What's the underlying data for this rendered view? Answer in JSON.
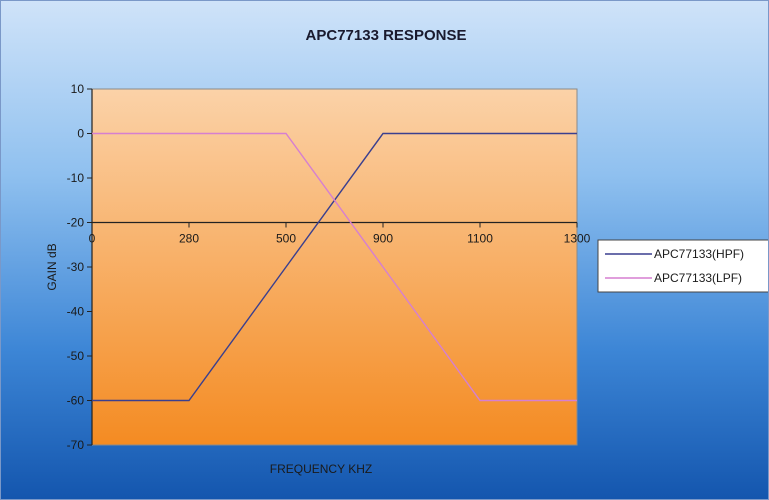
{
  "chart_data": {
    "type": "line",
    "title": "APC77133 RESPONSE",
    "xlabel": "FREQUENCY KHZ",
    "ylabel": "GAIN dB",
    "x_categories": [
      "0",
      "280",
      "500",
      "900",
      "1100",
      "1300"
    ],
    "y_ticks": [
      10,
      0,
      -10,
      -20,
      -30,
      -40,
      -50,
      -60,
      -70
    ],
    "ylim": [
      -70,
      10
    ],
    "x_axis_crosses_at": -20,
    "grid": false,
    "legend_position": "right",
    "series": [
      {
        "name": "APC77133(HPF)",
        "color": "#3a3f8f",
        "x": [
          0,
          280,
          500,
          900,
          1100,
          1300
        ],
        "y": [
          -60,
          -60,
          -30,
          0,
          0,
          0
        ]
      },
      {
        "name": "APC77133(LPF)",
        "color": "#d67fd0",
        "x": [
          0,
          280,
          500,
          900,
          1100,
          1300
        ],
        "y": [
          0,
          0,
          0,
          -30,
          -60,
          -60
        ]
      }
    ],
    "plot_background": [
      "#fbd2a8",
      "#f48b22"
    ]
  }
}
